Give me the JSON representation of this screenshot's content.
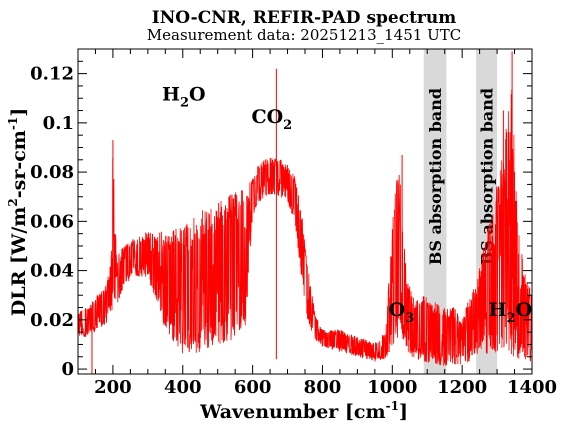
{
  "title": "INO-CNR, REFIR-PAD spectrum",
  "subtitle": "Measurement data: 20251213_1451 UTC",
  "chart_data": {
    "type": "line",
    "title": "INO-CNR, REFIR-PAD spectrum",
    "subtitle": "Measurement data: 20251213_1451 UTC",
    "xlabel": {
      "main": "Wavenumber [cm",
      "sup": "-1",
      "close": "]"
    },
    "ylabel": {
      "p1": "DLR [W/m",
      "sup1": "2",
      "p2": "-sr-cm",
      "sup2": "-1",
      "p3": "]"
    },
    "xlim": [
      100,
      1400
    ],
    "ylim": [
      -0.002,
      0.13
    ],
    "xticks": [
      200,
      400,
      600,
      800,
      1000,
      1200,
      1400
    ],
    "xtick_labels": [
      "200",
      "400",
      "600",
      "800",
      "1000",
      "1200",
      "1400"
    ],
    "yticks": [
      0,
      0.02,
      0.04,
      0.06,
      0.08,
      0.1,
      0.12
    ],
    "ytick_labels": [
      "0",
      "0.02",
      "0.04",
      "0.06",
      "0.08",
      "0.1",
      "0.12"
    ],
    "grid": false,
    "legend": "none",
    "series_color": "#ff0000",
    "band_color": "#d9d9d9",
    "bands": [
      {
        "x0": 1090,
        "x1": 1155,
        "label": "BS absorption band"
      },
      {
        "x0": 1240,
        "x1": 1300,
        "label": "BS absorption band"
      }
    ],
    "annotations": [
      {
        "id": "h2o-left",
        "base": "H",
        "sub": "2",
        "tail": "O",
        "x": 403,
        "y": 0.109
      },
      {
        "id": "co2",
        "base": "CO",
        "sub": "2",
        "tail": "",
        "x": 655,
        "y": 0.1
      },
      {
        "id": "o3",
        "base": "O",
        "sub": "3",
        "tail": "",
        "x": 1026,
        "y": 0.0215
      },
      {
        "id": "h2o-right",
        "base": "H",
        "sub": "2",
        "tail": "O",
        "x": 1338,
        "y": 0.0215
      }
    ],
    "envelope": {
      "x": [
        100,
        120,
        140,
        160,
        180,
        195,
        200,
        210,
        230,
        260,
        300,
        350,
        400,
        450,
        500,
        550,
        580,
        600,
        620,
        650,
        680,
        700,
        720,
        740,
        760,
        780,
        800,
        850,
        900,
        950,
        980,
        1000,
        1020,
        1040,
        1060,
        1090,
        1155,
        1180,
        1200,
        1220,
        1240,
        1300,
        1320,
        1340,
        1360,
        1380,
        1400
      ],
      "max": [
        0.024,
        0.025,
        0.027,
        0.031,
        0.034,
        0.044,
        0.093,
        0.046,
        0.05,
        0.053,
        0.056,
        0.056,
        0.058,
        0.064,
        0.068,
        0.072,
        0.076,
        0.078,
        0.084,
        0.086,
        0.085,
        0.083,
        0.079,
        0.065,
        0.04,
        0.022,
        0.016,
        0.016,
        0.013,
        0.011,
        0.015,
        0.06,
        0.09,
        0.04,
        0.03,
        0.03,
        0.025,
        0.025,
        0.02,
        0.03,
        0.035,
        0.075,
        0.09,
        0.12,
        0.06,
        0.04,
        0.03
      ],
      "min": [
        0.013,
        0.013,
        0.014,
        0.016,
        0.018,
        0.022,
        0.024,
        0.025,
        0.033,
        0.038,
        0.037,
        0.016,
        0.006,
        0.006,
        0.01,
        0.012,
        0.018,
        0.062,
        0.068,
        0.071,
        0.07,
        0.068,
        0.06,
        0.036,
        0.018,
        0.011,
        0.009,
        0.007,
        0.005,
        0.003,
        0.004,
        0.008,
        0.014,
        0.008,
        0.004,
        0.003,
        0.001,
        0.001,
        0.002,
        0.003,
        0.006,
        0.006,
        0.006,
        0.005,
        0.004,
        0.003,
        0.002
      ]
    },
    "spikes": [
      {
        "x": 140,
        "y": -0.005
      },
      {
        "x": 200,
        "y": 0.093
      },
      {
        "x": 668,
        "y": 0.122
      },
      {
        "x": 668,
        "y": 0.004
      },
      {
        "x": 1028,
        "y": 0.087
      },
      {
        "x": 1343,
        "y": 0.129
      },
      {
        "x": 1318,
        "y": 0.105
      },
      {
        "x": 1334,
        "y": 0.085
      }
    ]
  }
}
